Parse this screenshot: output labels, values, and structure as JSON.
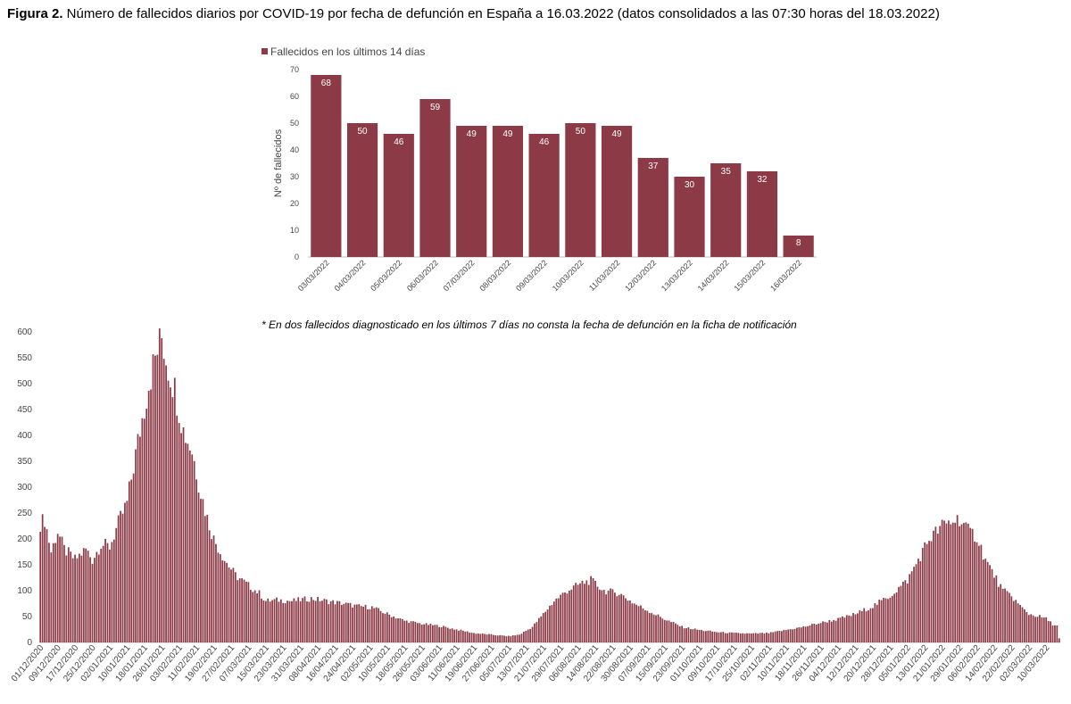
{
  "figure": {
    "title_bold": "Figura 2.",
    "title_rest": " Número de fallecidos diarios por COVID-19 por fecha de defunción en España a 16.03.2022 (datos consolidados a las 07:30 horas del 18.03.2022)",
    "note": "* En dos fallecidos diagnosticado en los últimos 7 días no consta la fecha de defunción en la ficha de notificación"
  },
  "colors": {
    "bar": "#8b3a46",
    "axis": "#bfbfbf",
    "text": "#444444"
  },
  "chart_data": [
    {
      "type": "bar",
      "title": "",
      "legend": {
        "entries": [
          "Fallecidos en los últimos 14 días"
        ],
        "placement": "top-left"
      },
      "ylabel": "Nº de fallecidos",
      "xlabel": "",
      "ylim": [
        0,
        70
      ],
      "yticks": [
        0,
        10,
        20,
        30,
        40,
        50,
        60,
        70
      ],
      "categories": [
        "03/03/2022",
        "04/03/2022",
        "05/03/2022",
        "06/03/2022",
        "07/03/2022",
        "08/03/2022",
        "09/03/2022",
        "10/03/2022",
        "11/03/2022",
        "12/03/2022",
        "13/03/2022",
        "14/03/2022",
        "15/03/2022",
        "16/03/2022"
      ],
      "series": [
        {
          "name": "Fallecidos en los últimos 14 días",
          "values": [
            68,
            50,
            46,
            59,
            49,
            49,
            46,
            50,
            49,
            37,
            30,
            35,
            32,
            8
          ]
        }
      ],
      "data_labels": true,
      "grid": false
    },
    {
      "type": "bar",
      "title": "",
      "xlabel": "",
      "ylabel": "",
      "ylim": [
        0,
        600
      ],
      "yticks": [
        0,
        50,
        100,
        150,
        200,
        250,
        300,
        350,
        400,
        450,
        500,
        550,
        600
      ],
      "x_start": "01/12/2020",
      "x_end": "16/03/2022",
      "xtick_labels": [
        "01/12/2020",
        "09/12/2020",
        "17/12/2020",
        "25/12/2020",
        "02/01/2021",
        "10/01/2021",
        "18/01/2021",
        "26/01/2021",
        "03/02/2021",
        "11/02/2021",
        "19/02/2021",
        "27/02/2021",
        "07/03/2021",
        "15/03/2021",
        "23/03/2021",
        "31/03/2021",
        "08/04/2021",
        "16/04/2021",
        "24/04/2021",
        "02/05/2021",
        "10/05/2021",
        "18/05/2021",
        "26/05/2021",
        "03/06/2021",
        "11/06/2021",
        "19/06/2021",
        "27/06/2021",
        "05/07/2021",
        "13/07/2021",
        "21/07/2021",
        "29/07/2021",
        "06/08/2021",
        "14/08/2021",
        "22/08/2021",
        "30/08/2021",
        "07/09/2021",
        "15/09/2021",
        "23/09/2021",
        "01/10/2021",
        "09/10/2021",
        "17/10/2021",
        "25/10/2021",
        "02/11/2021",
        "10/11/2021",
        "18/11/2021",
        "26/11/2021",
        "04/12/2021",
        "12/12/2021",
        "20/12/2021",
        "28/12/2021",
        "05/01/2022",
        "13/01/2022",
        "21/01/2022",
        "29/01/2022",
        "06/02/2022",
        "14/02/2022",
        "22/02/2022",
        "02/03/2022",
        "10/03/2022"
      ],
      "profile": [
        {
          "date": "01/12/2020",
          "value": 230
        },
        {
          "date": "03/12/2020",
          "value": 238
        },
        {
          "date": "06/12/2020",
          "value": 175
        },
        {
          "date": "09/12/2020",
          "value": 215
        },
        {
          "date": "12/12/2020",
          "value": 180
        },
        {
          "date": "17/12/2020",
          "value": 160
        },
        {
          "date": "22/12/2020",
          "value": 180
        },
        {
          "date": "25/12/2020",
          "value": 160
        },
        {
          "date": "29/12/2020",
          "value": 190
        },
        {
          "date": "02/01/2021",
          "value": 185
        },
        {
          "date": "06/01/2021",
          "value": 230
        },
        {
          "date": "10/01/2021",
          "value": 270
        },
        {
          "date": "13/01/2021",
          "value": 340
        },
        {
          "date": "16/01/2021",
          "value": 410
        },
        {
          "date": "20/01/2021",
          "value": 500
        },
        {
          "date": "23/01/2021",
          "value": 550
        },
        {
          "date": "26/01/2021",
          "value": 590
        },
        {
          "date": "29/01/2021",
          "value": 530
        },
        {
          "date": "01/02/2021",
          "value": 490
        },
        {
          "date": "05/02/2021",
          "value": 410
        },
        {
          "date": "09/02/2021",
          "value": 370
        },
        {
          "date": "13/02/2021",
          "value": 290
        },
        {
          "date": "16/02/2021",
          "value": 240
        },
        {
          "date": "19/02/2021",
          "value": 200
        },
        {
          "date": "24/02/2021",
          "value": 160
        },
        {
          "date": "01/03/2021",
          "value": 130
        },
        {
          "date": "07/03/2021",
          "value": 110
        },
        {
          "date": "12/03/2021",
          "value": 95
        },
        {
          "date": "15/03/2021",
          "value": 80
        },
        {
          "date": "21/03/2021",
          "value": 82
        },
        {
          "date": "27/03/2021",
          "value": 80
        },
        {
          "date": "05/04/2021",
          "value": 85
        },
        {
          "date": "12/04/2021",
          "value": 80
        },
        {
          "date": "20/04/2021",
          "value": 75
        },
        {
          "date": "26/04/2021",
          "value": 70
        },
        {
          "date": "03/05/2021",
          "value": 68
        },
        {
          "date": "10/05/2021",
          "value": 55
        },
        {
          "date": "18/05/2021",
          "value": 42
        },
        {
          "date": "26/05/2021",
          "value": 36
        },
        {
          "date": "03/06/2021",
          "value": 32
        },
        {
          "date": "11/06/2021",
          "value": 25
        },
        {
          "date": "19/06/2021",
          "value": 18
        },
        {
          "date": "27/06/2021",
          "value": 15
        },
        {
          "date": "05/07/2021",
          "value": 12
        },
        {
          "date": "10/07/2021",
          "value": 15
        },
        {
          "date": "16/07/2021",
          "value": 30
        },
        {
          "date": "21/07/2021",
          "value": 55
        },
        {
          "date": "26/07/2021",
          "value": 80
        },
        {
          "date": "01/08/2021",
          "value": 100
        },
        {
          "date": "08/08/2021",
          "value": 115
        },
        {
          "date": "12/08/2021",
          "value": 120
        },
        {
          "date": "18/08/2021",
          "value": 100
        },
        {
          "date": "25/08/2021",
          "value": 95
        },
        {
          "date": "01/09/2021",
          "value": 75
        },
        {
          "date": "08/09/2021",
          "value": 60
        },
        {
          "date": "15/09/2021",
          "value": 45
        },
        {
          "date": "23/09/2021",
          "value": 30
        },
        {
          "date": "01/10/2021",
          "value": 24
        },
        {
          "date": "09/10/2021",
          "value": 20
        },
        {
          "date": "17/10/2021",
          "value": 18
        },
        {
          "date": "25/10/2021",
          "value": 17
        },
        {
          "date": "02/11/2021",
          "value": 18
        },
        {
          "date": "10/11/2021",
          "value": 24
        },
        {
          "date": "18/11/2021",
          "value": 30
        },
        {
          "date": "26/11/2021",
          "value": 38
        },
        {
          "date": "04/12/2021",
          "value": 45
        },
        {
          "date": "12/12/2021",
          "value": 55
        },
        {
          "date": "20/12/2021",
          "value": 70
        },
        {
          "date": "28/12/2021",
          "value": 90
        },
        {
          "date": "05/01/2022",
          "value": 120
        },
        {
          "date": "10/01/2022",
          "value": 160
        },
        {
          "date": "15/01/2022",
          "value": 200
        },
        {
          "date": "21/01/2022",
          "value": 225
        },
        {
          "date": "26/01/2022",
          "value": 235
        },
        {
          "date": "29/01/2022",
          "value": 240
        },
        {
          "date": "02/02/2022",
          "value": 215
        },
        {
          "date": "06/02/2022",
          "value": 205
        },
        {
          "date": "10/02/2022",
          "value": 160
        },
        {
          "date": "14/02/2022",
          "value": 130
        },
        {
          "date": "18/02/2022",
          "value": 100
        },
        {
          "date": "22/02/2022",
          "value": 90
        },
        {
          "date": "26/02/2022",
          "value": 70
        },
        {
          "date": "02/03/2022",
          "value": 55
        },
        {
          "date": "07/03/2022",
          "value": 50
        },
        {
          "date": "10/03/2022",
          "value": 46
        },
        {
          "date": "13/03/2022",
          "value": 35
        },
        {
          "date": "15/03/2022",
          "value": 32
        },
        {
          "date": "16/03/2022",
          "value": 8
        }
      ],
      "grid": false
    }
  ]
}
